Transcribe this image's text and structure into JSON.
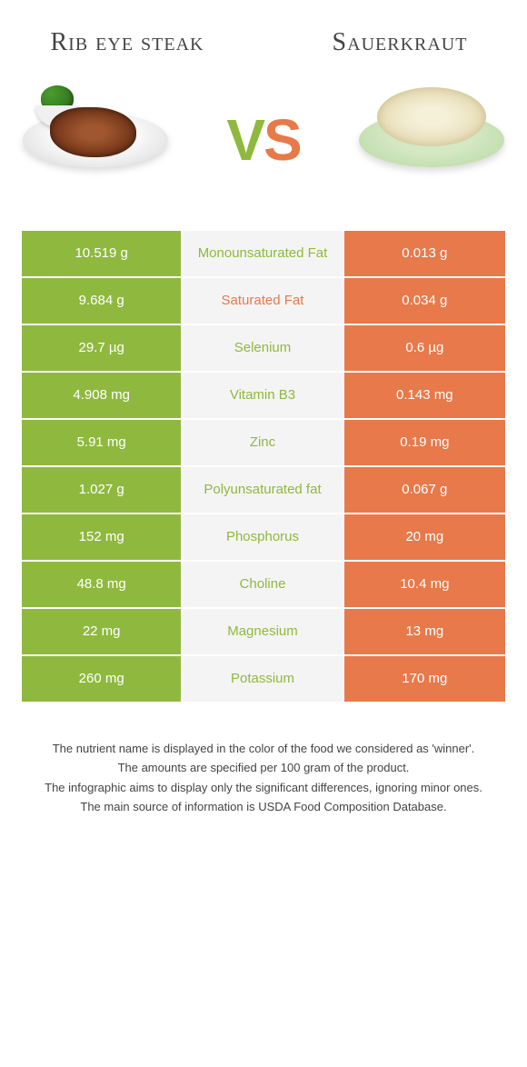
{
  "header": {
    "left_title": "Rib eye steak",
    "right_title": "Sauerkraut",
    "vs_v": "V",
    "vs_s": "S"
  },
  "colors": {
    "left_bg": "#8fb93e",
    "right_bg": "#e8794a",
    "mid_bg": "#f4f4f4",
    "left_text": "#ffffff",
    "right_text": "#ffffff",
    "winner_left_label_color": "#8fb93e",
    "winner_right_label_color": "#e8794a"
  },
  "table": {
    "rows": [
      {
        "left": "10.519 g",
        "name": "Monounsaturated Fat",
        "right": "0.013 g",
        "winner": "left"
      },
      {
        "left": "9.684 g",
        "name": "Saturated Fat",
        "right": "0.034 g",
        "winner": "right"
      },
      {
        "left": "29.7 µg",
        "name": "Selenium",
        "right": "0.6 µg",
        "winner": "left"
      },
      {
        "left": "4.908 mg",
        "name": "Vitamin B3",
        "right": "0.143 mg",
        "winner": "left"
      },
      {
        "left": "5.91 mg",
        "name": "Zinc",
        "right": "0.19 mg",
        "winner": "left"
      },
      {
        "left": "1.027 g",
        "name": "Polyunsaturated fat",
        "right": "0.067 g",
        "winner": "left"
      },
      {
        "left": "152 mg",
        "name": "Phosphorus",
        "right": "20 mg",
        "winner": "left"
      },
      {
        "left": "48.8 mg",
        "name": "Choline",
        "right": "10.4 mg",
        "winner": "left"
      },
      {
        "left": "22 mg",
        "name": "Magnesium",
        "right": "13 mg",
        "winner": "left"
      },
      {
        "left": "260 mg",
        "name": "Potassium",
        "right": "170 mg",
        "winner": "left"
      }
    ]
  },
  "footnotes": {
    "line1": "The nutrient name is displayed in the color of the food we considered as 'winner'.",
    "line2": "The amounts are specified per 100 gram of the product.",
    "line3": "The infographic aims to display only the significant differences, ignoring minor ones.",
    "line4": "The main source of information is USDA Food Composition Database."
  }
}
